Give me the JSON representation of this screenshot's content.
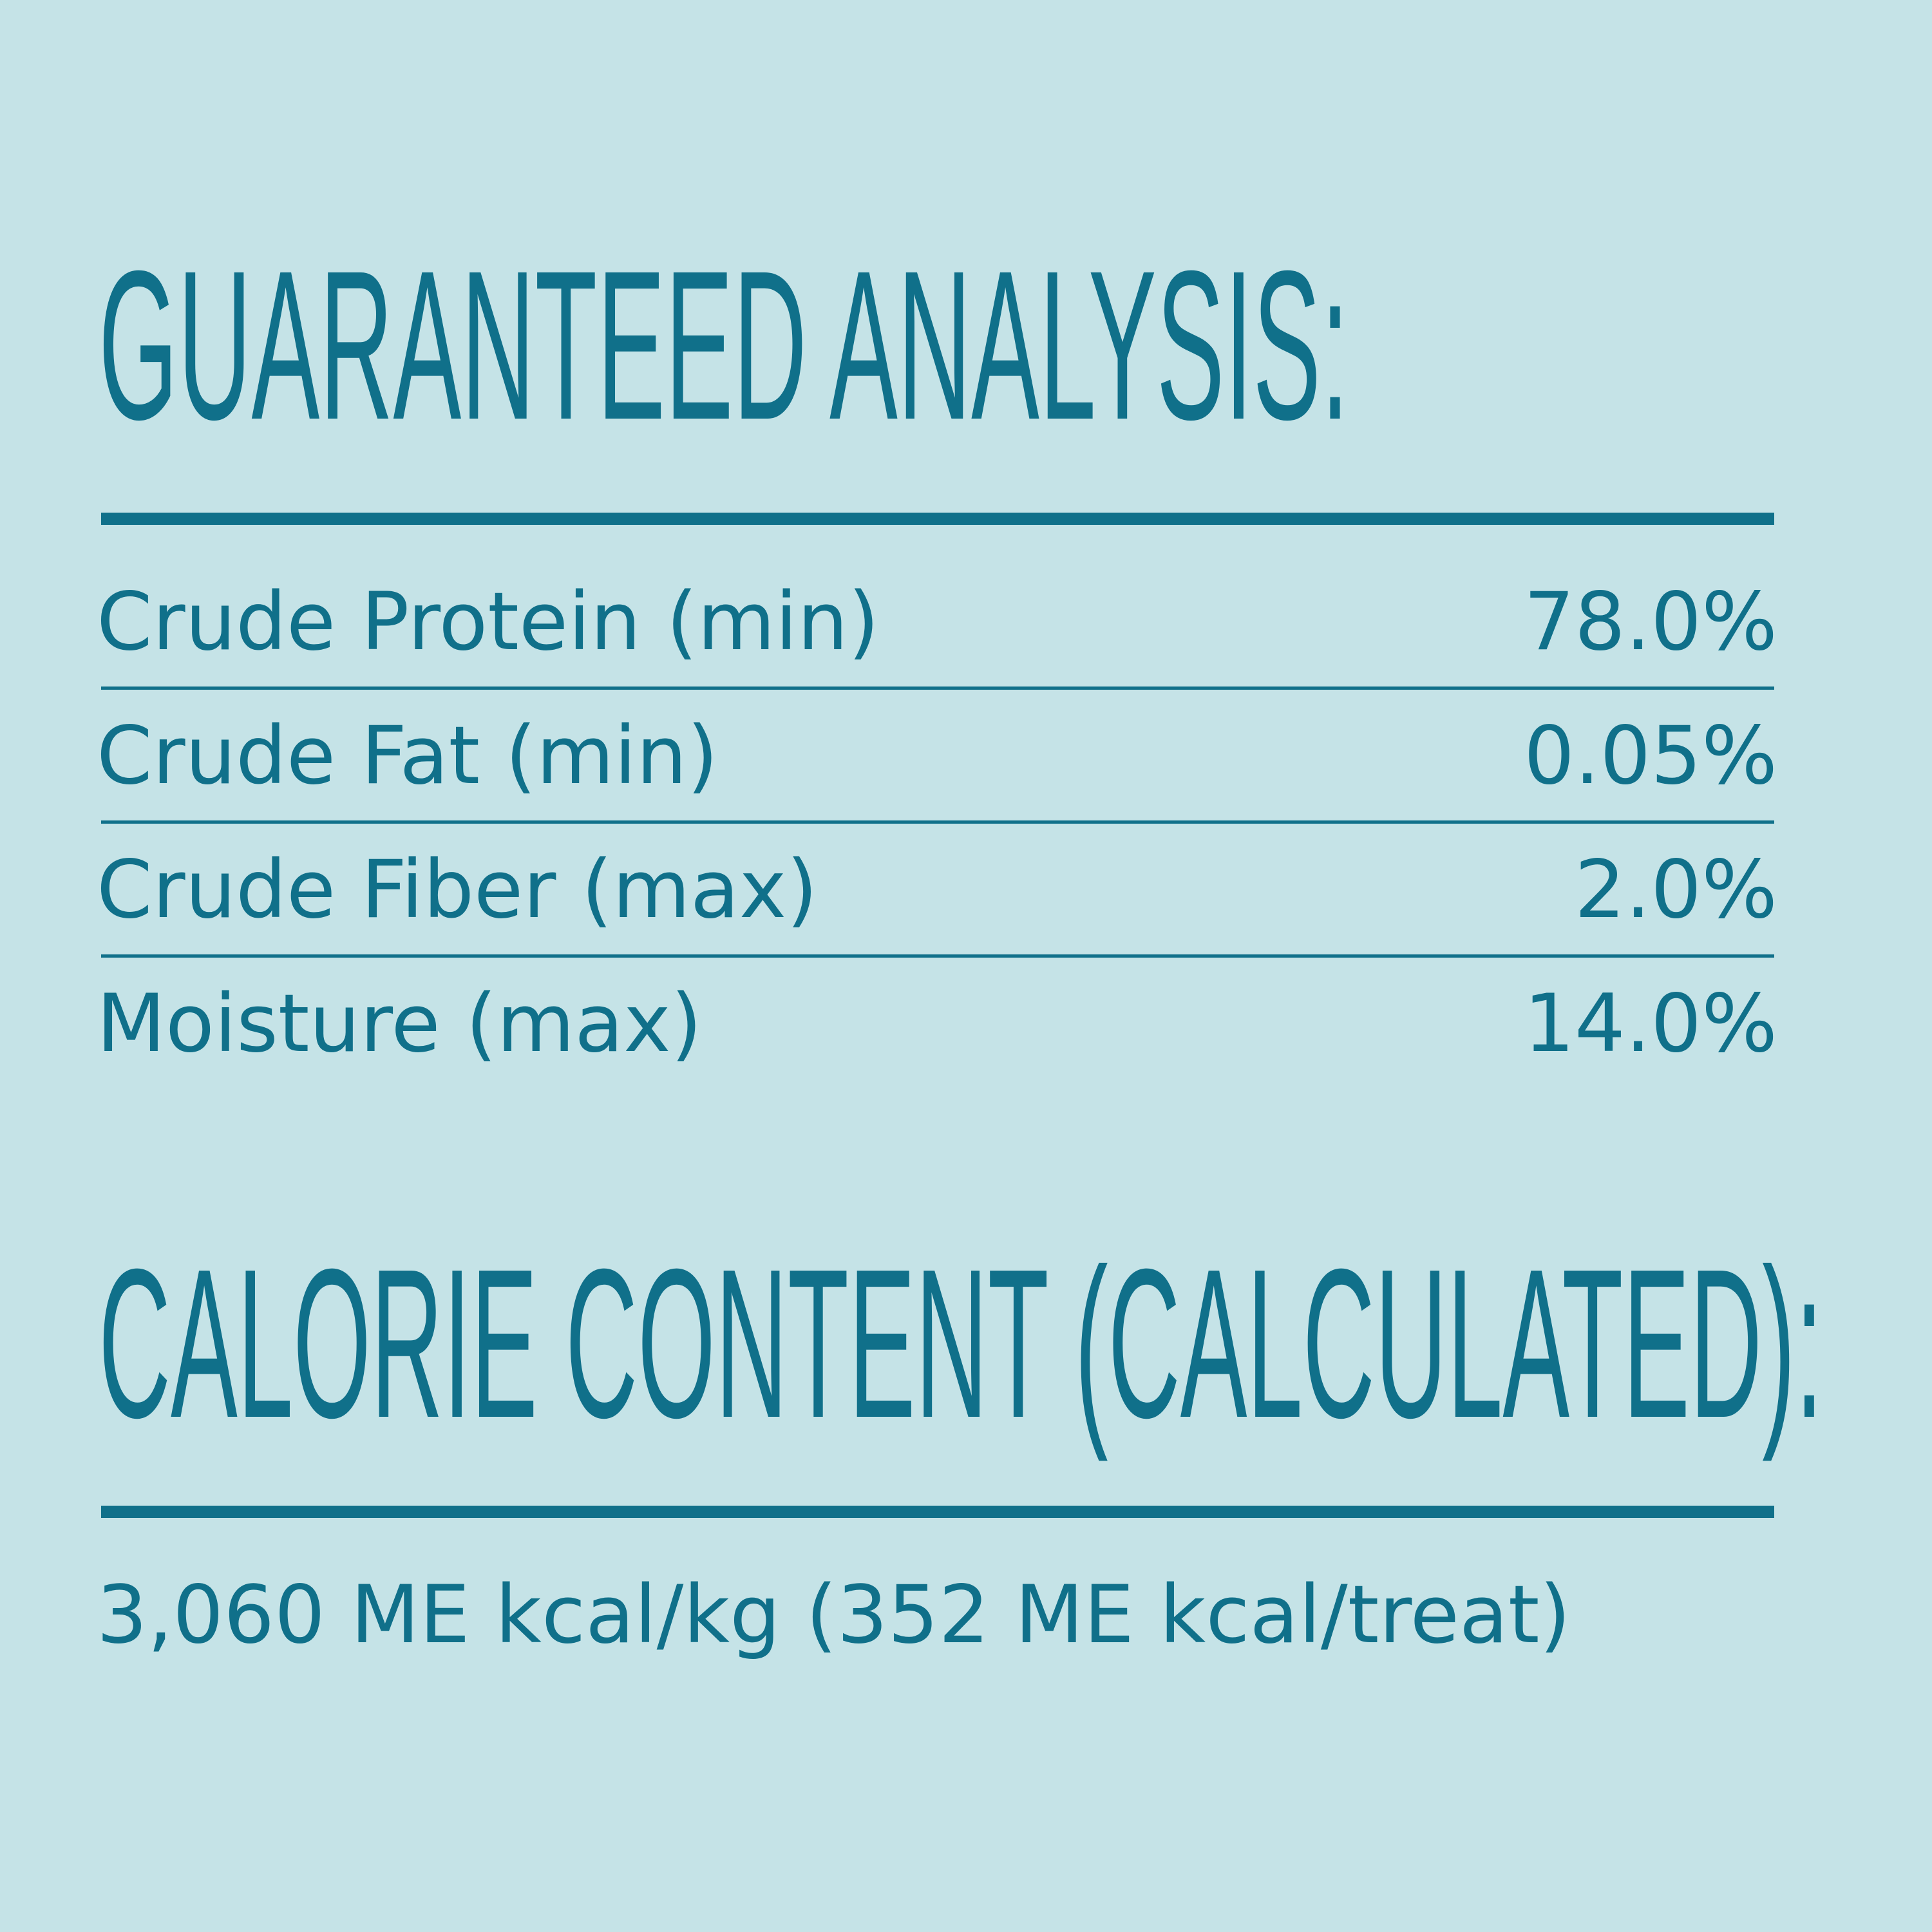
{
  "header": {
    "title": "GUARANTEED ANALYSIS:"
  },
  "table": {
    "rows": [
      [
        "Crude Protein (min)",
        "78.0%"
      ],
      [
        "Crude Fat (min)",
        "0.05%"
      ],
      [
        "Crude Fiber (max)",
        "2.0%"
      ],
      [
        "Moisture (max)",
        "14.0%"
      ]
    ]
  },
  "calorie": {
    "title": "CALORIE CONTENT (CALCULATED):",
    "text": "3,060 ME kcal/kg (352 ME kcal/treat)"
  }
}
